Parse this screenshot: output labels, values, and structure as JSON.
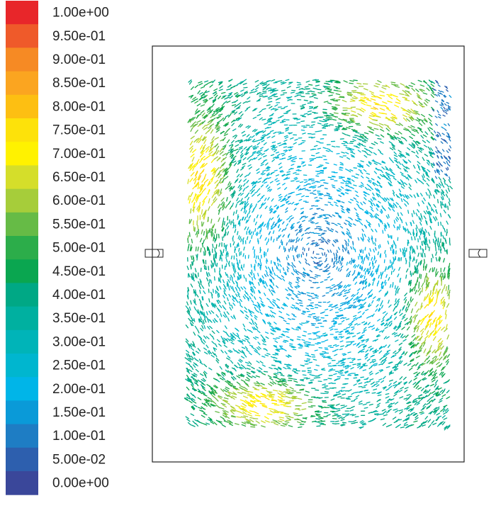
{
  "legend": {
    "levels": [
      {
        "label": "1.00e+00",
        "color": "#e8262a"
      },
      {
        "label": "9.50e-01",
        "color": "#ef5a2a"
      },
      {
        "label": "9.00e-01",
        "color": "#f68a24"
      },
      {
        "label": "8.50e-01",
        "color": "#fba520"
      },
      {
        "label": "8.00e-01",
        "color": "#fdbf12"
      },
      {
        "label": "7.50e-01",
        "color": "#fde20a"
      },
      {
        "label": "7.00e-01",
        "color": "#fff200"
      },
      {
        "label": "6.50e-01",
        "color": "#d5de2a"
      },
      {
        "label": "6.00e-01",
        "color": "#a6cd3a"
      },
      {
        "label": "5.50e-01",
        "color": "#66bb46"
      },
      {
        "label": "5.00e-01",
        "color": "#2cad4a"
      },
      {
        "label": "4.50e-01",
        "color": "#0aa650"
      },
      {
        "label": "4.00e-01",
        "color": "#00a885"
      },
      {
        "label": "3.50e-01",
        "color": "#00b0a0"
      },
      {
        "label": "3.00e-01",
        "color": "#00b4b8"
      },
      {
        "label": "2.50e-01",
        "color": "#00b6cf"
      },
      {
        "label": "2.00e-01",
        "color": "#00b5e8"
      },
      {
        "label": "1.50e-01",
        "color": "#0a9ad8"
      },
      {
        "label": "1.00e-01",
        "color": "#1e7dc4"
      },
      {
        "label": "5.00e-02",
        "color": "#2d5fae"
      },
      {
        "label": "0.00e+00",
        "color": "#3a479a"
      }
    ]
  }
}
